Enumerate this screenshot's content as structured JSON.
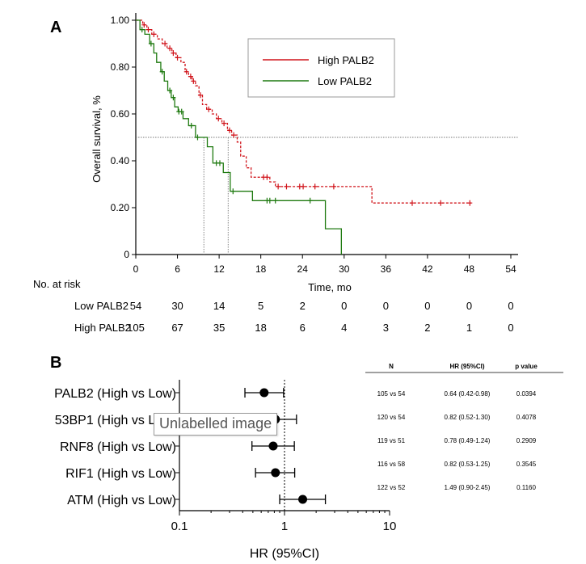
{
  "colors": {
    "high": "#d0131a",
    "low": "#1f7a10",
    "axis": "#000000",
    "ref": "#777777"
  },
  "panel_a_label": "A",
  "panel_b_label": "B",
  "chart_data": [
    {
      "type": "line",
      "subtype": "kaplan-meier",
      "title": "",
      "xlabel": "Time, mo",
      "ylabel": "Overall survival, %",
      "xlim": [
        0,
        54
      ],
      "ylim": [
        0,
        1
      ],
      "x_ticks": [
        "0",
        "6",
        "12",
        "18",
        "24",
        "30",
        "36",
        "42",
        "48",
        "54"
      ],
      "y_ticks": [
        "0",
        "0.20",
        "0.40",
        "0.60",
        "0.80",
        "1.00"
      ],
      "median_line_y": 0.5,
      "median_markers_x": [
        9.8,
        13.3
      ],
      "legend": {
        "position": "top-right",
        "entries": [
          "High PALB2",
          "Low PALB2"
        ]
      },
      "series": [
        {
          "name": "High PALB2",
          "color": "high",
          "style": "dashed",
          "steps": [
            [
              0,
              1.0
            ],
            [
              1,
              0.98
            ],
            [
              1.6,
              0.96
            ],
            [
              2.3,
              0.94
            ],
            [
              3.1,
              0.92
            ],
            [
              3.8,
              0.9
            ],
            [
              4.5,
              0.88
            ],
            [
              5.2,
              0.86
            ],
            [
              5.8,
              0.84
            ],
            [
              6.5,
              0.82
            ],
            [
              7.1,
              0.78
            ],
            [
              7.6,
              0.76
            ],
            [
              8.1,
              0.74
            ],
            [
              8.6,
              0.72
            ],
            [
              9.1,
              0.68
            ],
            [
              9.6,
              0.64
            ],
            [
              10.2,
              0.62
            ],
            [
              11.0,
              0.6
            ],
            [
              11.6,
              0.58
            ],
            [
              12.4,
              0.56
            ],
            [
              13.2,
              0.53
            ],
            [
              13.8,
              0.51
            ],
            [
              14.6,
              0.48
            ],
            [
              15.1,
              0.42
            ],
            [
              15.9,
              0.37
            ],
            [
              16.6,
              0.33
            ],
            [
              19.3,
              0.31
            ],
            [
              20.1,
              0.29
            ],
            [
              34.0,
              0.22
            ],
            [
              48.3,
              0.22
            ]
          ],
          "censor": [
            [
              1.2,
              0.98
            ],
            [
              1.8,
              0.96
            ],
            [
              2.6,
              0.94
            ],
            [
              4.2,
              0.9
            ],
            [
              4.9,
              0.88
            ],
            [
              5.4,
              0.86
            ],
            [
              6.0,
              0.84
            ],
            [
              7.3,
              0.78
            ],
            [
              7.9,
              0.76
            ],
            [
              8.3,
              0.74
            ],
            [
              9.3,
              0.68
            ],
            [
              10.5,
              0.62
            ],
            [
              11.9,
              0.58
            ],
            [
              12.7,
              0.56
            ],
            [
              13.5,
              0.53
            ],
            [
              14.1,
              0.51
            ],
            [
              18.4,
              0.33
            ],
            [
              18.9,
              0.33
            ],
            [
              20.5,
              0.29
            ],
            [
              21.7,
              0.29
            ],
            [
              23.6,
              0.29
            ],
            [
              24.1,
              0.29
            ],
            [
              25.8,
              0.29
            ],
            [
              28.5,
              0.29
            ],
            [
              39.8,
              0.22
            ],
            [
              43.9,
              0.22
            ],
            [
              48.1,
              0.22
            ]
          ]
        },
        {
          "name": "Low PALB2",
          "color": "low",
          "style": "solid",
          "steps": [
            [
              0,
              1.0
            ],
            [
              0.6,
              0.96
            ],
            [
              1.3,
              0.94
            ],
            [
              2.0,
              0.9
            ],
            [
              2.6,
              0.86
            ],
            [
              3.0,
              0.82
            ],
            [
              3.6,
              0.78
            ],
            [
              4.1,
              0.74
            ],
            [
              4.6,
              0.7
            ],
            [
              5.1,
              0.67
            ],
            [
              5.6,
              0.63
            ],
            [
              6.1,
              0.61
            ],
            [
              6.8,
              0.58
            ],
            [
              7.6,
              0.55
            ],
            [
              8.6,
              0.5
            ],
            [
              10.3,
              0.46
            ],
            [
              11.1,
              0.39
            ],
            [
              12.6,
              0.35
            ],
            [
              13.6,
              0.27
            ],
            [
              16.8,
              0.23
            ],
            [
              27.3,
              0.11
            ],
            [
              29.6,
              0.0
            ]
          ],
          "censor": [
            [
              0.9,
              0.96
            ],
            [
              2.2,
              0.9
            ],
            [
              3.8,
              0.78
            ],
            [
              4.9,
              0.7
            ],
            [
              5.4,
              0.67
            ],
            [
              6.2,
              0.61
            ],
            [
              6.6,
              0.61
            ],
            [
              8.0,
              0.55
            ],
            [
              8.9,
              0.5
            ],
            [
              11.6,
              0.39
            ],
            [
              12.1,
              0.39
            ],
            [
              14.0,
              0.27
            ],
            [
              18.9,
              0.23
            ],
            [
              19.3,
              0.23
            ],
            [
              20.1,
              0.23
            ],
            [
              25.1,
              0.23
            ]
          ]
        }
      ],
      "risk_table": {
        "header": "No. at risk",
        "rows": [
          {
            "label": "Low PALB2",
            "values": [
              "54",
              "30",
              "14",
              "5",
              "2",
              "0",
              "0",
              "0",
              "0",
              "0"
            ]
          },
          {
            "label": "High PALB2",
            "values": [
              "105",
              "67",
              "35",
              "18",
              "6",
              "4",
              "3",
              "2",
              "1",
              "0"
            ]
          }
        ]
      }
    },
    {
      "type": "scatter",
      "subtype": "forest",
      "xlabel": "HR (95%CI)",
      "xscale": "log",
      "xlim": [
        0.1,
        10
      ],
      "x_ticks": [
        "0.1",
        "1",
        "10"
      ],
      "reference_x": 1,
      "rows": [
        {
          "label": "PALB2 (High vs Low)",
          "hr": 0.64,
          "lo": 0.42,
          "hi": 0.98
        },
        {
          "label": "53BP1 (High vs Low)",
          "hr": 0.82,
          "lo": 0.52,
          "hi": 1.3
        },
        {
          "label": "RNF8 (High vs Low)",
          "hr": 0.78,
          "lo": 0.49,
          "hi": 1.24
        },
        {
          "label": "RIF1 (High vs Low)",
          "hr": 0.82,
          "lo": 0.53,
          "hi": 1.25
        },
        {
          "label": "ATM (High vs Low)",
          "hr": 1.49,
          "lo": 0.9,
          "hi": 2.45
        }
      ],
      "table": {
        "headers": [
          "N",
          "HR (95%CI)",
          "p value"
        ],
        "rows": [
          [
            "105 vs 54",
            "0.64 (0.42-0.98)",
            "0.0394"
          ],
          [
            "120 vs 54",
            "0.82 (0.52-1.30)",
            "0.4078"
          ],
          [
            "119 vs 51",
            "0.78 (0.49-1.24)",
            "0.2909"
          ],
          [
            "116 vs 58",
            "0.82 (0.53-1.25)",
            "0.3545"
          ],
          [
            "122 vs 52",
            "1.49 (0.90-2.45)",
            "0.1160"
          ]
        ]
      }
    }
  ],
  "tooltip": "Unlabelled image"
}
